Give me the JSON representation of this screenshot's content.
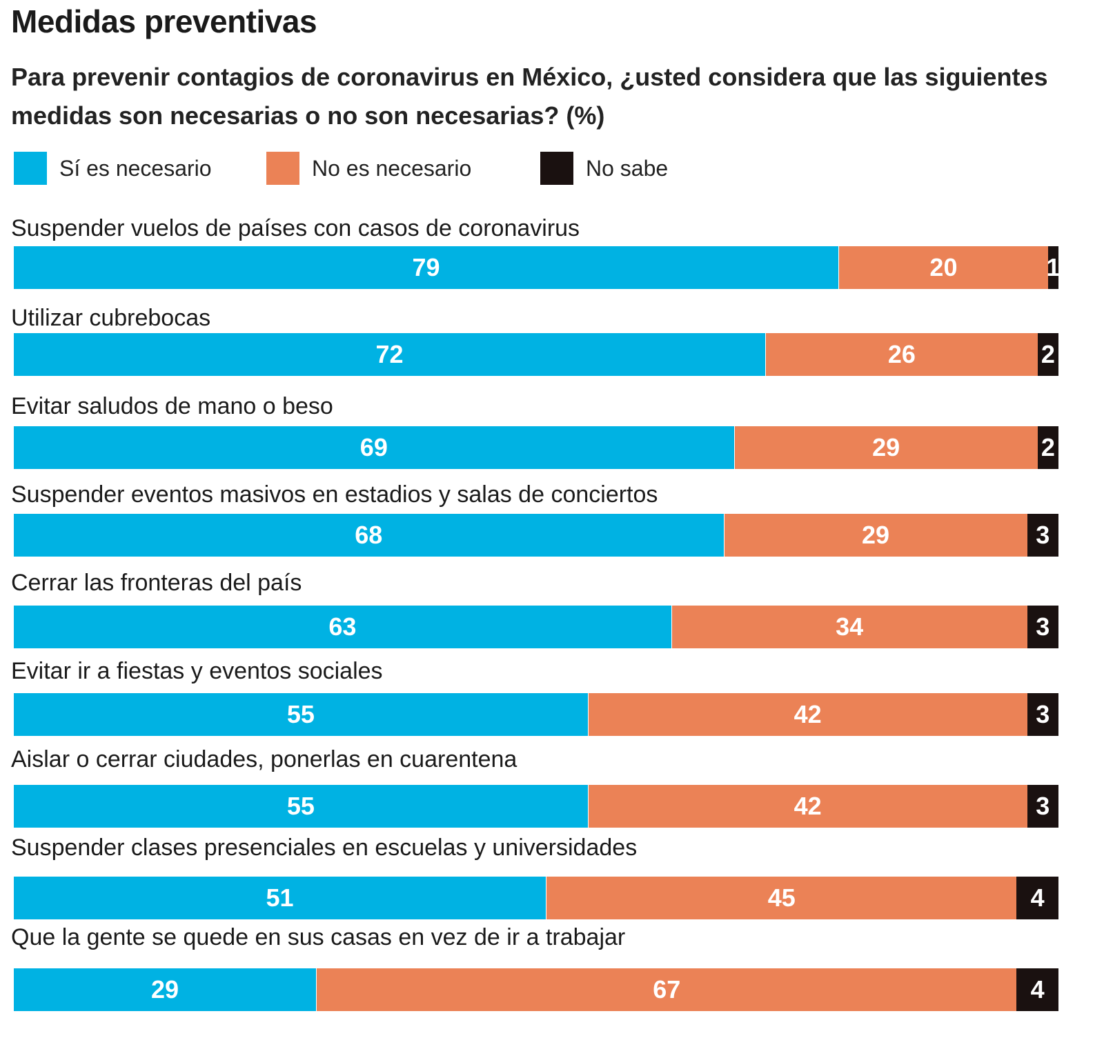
{
  "chart_data": {
    "type": "bar",
    "orientation": "horizontal",
    "stacked": true,
    "title": "Medidas preventivas",
    "subtitle": "Para prevenir contagios de coronavirus en México, ¿usted considera que las siguientes medidas son necesarias o no son necesarias?  (%)",
    "legend_position": "top-left",
    "grid": false,
    "xlim": [
      0,
      100
    ],
    "categories": [
      "Suspender vuelos de países con casos de coronavirus",
      "Utilizar cubrebocas",
      "Evitar saludos de mano o beso",
      "Suspender eventos masivos en estadios y salas de conciertos",
      "Cerrar las fronteras del país",
      "Evitar ir a fiestas y eventos sociales",
      "Aislar o cerrar ciudades, ponerlas en cuarentena",
      "Suspender clases presenciales en escuelas y universidades",
      "Que la gente se quede en sus casas en vez de ir a trabajar"
    ],
    "series": [
      {
        "name": "Sí es necesario",
        "color": "#00b2e3",
        "values": [
          79,
          72,
          69,
          68,
          63,
          55,
          55,
          51,
          29
        ]
      },
      {
        "name": "No es necesario",
        "color": "#eb8256",
        "values": [
          20,
          26,
          29,
          29,
          34,
          42,
          42,
          45,
          67
        ]
      },
      {
        "name": "No sabe",
        "color": "#1a1110",
        "values": [
          1,
          2,
          2,
          3,
          3,
          3,
          3,
          4,
          4
        ]
      }
    ]
  }
}
